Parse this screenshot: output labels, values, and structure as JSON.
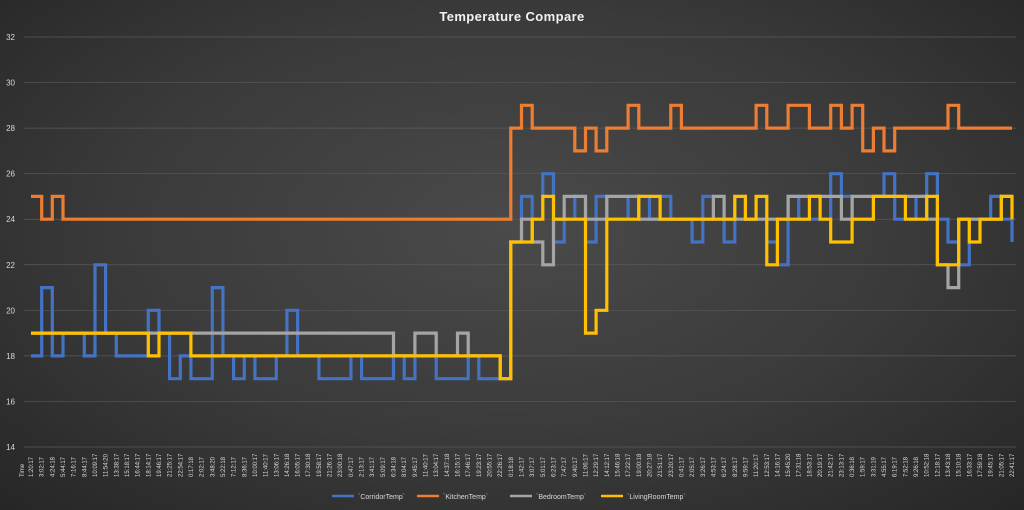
{
  "chart_data": {
    "type": "line",
    "title": "Temperature  Compare",
    "xlabel": "Time",
    "ylabel": "",
    "ylim": [
      14,
      32
    ],
    "yticks": [
      14,
      16,
      18,
      20,
      22,
      24,
      26,
      28,
      30,
      32
    ],
    "grid": true,
    "legend_position": "bottom",
    "x": [
      "1:20:17",
      "3:02:17",
      "4:24:18",
      "5:44:17",
      "7:16:17",
      "8:44:17",
      "10:09:17",
      "11:54:20",
      "13:38:17",
      "15:18:17",
      "16:44:17",
      "18:14:17",
      "19:46:17",
      "21:25:17",
      "22:54:17",
      "0:17:18",
      "2:02:17",
      "3:48:20",
      "5:22:18",
      "7:12:17",
      "8:36:17",
      "10:00:17",
      "11:40:17",
      "13:06:17",
      "14:26:18",
      "16:05:17",
      "17:30:18",
      "19:58:17",
      "21:26:17",
      "23:00:18",
      "0:47:17",
      "2:13:17",
      "3:41:17",
      "5:09:17",
      "6:34:18",
      "8:04:17",
      "9:45:17",
      "11:40:17",
      "13:04:17",
      "14:37:18",
      "16:15:17",
      "17:46:17",
      "19:23:17",
      "20:55:17",
      "22:26:17",
      "0:18:18",
      "1:42:17",
      "3:07:17",
      "5:01:17",
      "6:23:17",
      "7:47:17",
      "9:40:17",
      "11:06:17",
      "12:29:17",
      "14:12:17",
      "15:46:18",
      "17:22:17",
      "19:00:18",
      "20:27:18",
      "21:51:17",
      "23:20:17",
      "0:41:17",
      "2:05:17",
      "3:26:17",
      "4:53:17",
      "6:24:17",
      "8:28:17",
      "9:59:17",
      "11:20:17",
      "12:53:17",
      "14:16:17",
      "15:45:20",
      "17:31:18",
      "18:53:17",
      "20:19:17",
      "21:42:17",
      "23:13:17",
      "0:36:18",
      "1:59:17",
      "3:31:19",
      "4:55:17",
      "6:19:17",
      "7:52:18",
      "9:26:18",
      "10:52:18",
      "12:18:17",
      "13:43:18",
      "15:10:18",
      "16:33:17",
      "17:59:18",
      "19:45:17",
      "21:05:17",
      "22:41:17"
    ],
    "series": [
      {
        "name": "`CorridorTemp`",
        "color": "#4472c4",
        "values": [
          18,
          21,
          18,
          19,
          19,
          18,
          22,
          19,
          18,
          18,
          18,
          20,
          19,
          17,
          18,
          17,
          17,
          21,
          18,
          17,
          18,
          17,
          17,
          18,
          20,
          18,
          18,
          17,
          17,
          17,
          18,
          17,
          17,
          17,
          18,
          17,
          18,
          18,
          17,
          17,
          17,
          18,
          17,
          17,
          17,
          23,
          25,
          24,
          26,
          23,
          24,
          25,
          23,
          25,
          24,
          24,
          25,
          25,
          24,
          25,
          24,
          24,
          23,
          25,
          24,
          23,
          25,
          24,
          24,
          23,
          22,
          25,
          24,
          24,
          24,
          26,
          25,
          24,
          24,
          25,
          26,
          24,
          24,
          25,
          26,
          24,
          23,
          22,
          24,
          24,
          25,
          24,
          23
        ]
      },
      {
        "name": "`KitchenTemp`",
        "color": "#ed7d31",
        "values": [
          25,
          24,
          25,
          24,
          24,
          24,
          24,
          24,
          24,
          24,
          24,
          24,
          24,
          24,
          24,
          24,
          24,
          24,
          24,
          24,
          24,
          24,
          24,
          24,
          24,
          24,
          24,
          24,
          24,
          24,
          24,
          24,
          24,
          24,
          24,
          24,
          24,
          24,
          24,
          24,
          24,
          24,
          24,
          24,
          24,
          28,
          29,
          28,
          28,
          28,
          28,
          27,
          28,
          27,
          28,
          28,
          29,
          28,
          28,
          28,
          29,
          28,
          28,
          28,
          28,
          28,
          28,
          28,
          29,
          28,
          28,
          29,
          29,
          28,
          28,
          29,
          28,
          29,
          27,
          28,
          27,
          28,
          28,
          28,
          28,
          28,
          29,
          28,
          28,
          28,
          28,
          28,
          28
        ]
      },
      {
        "name": "`BedroomTemp`",
        "color": "#a5a5a5",
        "values": [
          19,
          19,
          19,
          19,
          19,
          19,
          19,
          19,
          19,
          19,
          19,
          19,
          19,
          19,
          19,
          19,
          19,
          19,
          19,
          19,
          19,
          19,
          19,
          19,
          19,
          19,
          19,
          19,
          19,
          19,
          19,
          19,
          19,
          19,
          18,
          18,
          19,
          19,
          18,
          18,
          19,
          18,
          18,
          18,
          17,
          23,
          24,
          23,
          22,
          24,
          25,
          25,
          24,
          24,
          25,
          25,
          25,
          24,
          24,
          24,
          24,
          24,
          24,
          24,
          25,
          24,
          24,
          24,
          24,
          24,
          24,
          25,
          25,
          25,
          25,
          25,
          24,
          25,
          25,
          25,
          25,
          25,
          25,
          25,
          24,
          22,
          21,
          24,
          24,
          24,
          24,
          25,
          25
        ]
      },
      {
        "name": "`LivingRoomTemp`",
        "color": "#ffc000",
        "values": [
          19,
          19,
          19,
          19,
          19,
          19,
          19,
          19,
          19,
          19,
          19,
          18,
          19,
          19,
          19,
          18,
          18,
          18,
          18,
          18,
          18,
          18,
          18,
          18,
          18,
          18,
          18,
          18,
          18,
          18,
          18,
          18,
          18,
          18,
          18,
          18,
          18,
          18,
          18,
          18,
          18,
          18,
          18,
          18,
          17,
          23,
          23,
          24,
          25,
          24,
          24,
          24,
          19,
          20,
          24,
          24,
          24,
          25,
          25,
          24,
          24,
          24,
          24,
          24,
          24,
          24,
          25,
          24,
          25,
          22,
          24,
          24,
          24,
          25,
          24,
          23,
          23,
          24,
          24,
          25,
          25,
          25,
          24,
          24,
          25,
          22,
          22,
          24,
          23,
          24,
          24,
          25,
          24
        ]
      }
    ]
  }
}
